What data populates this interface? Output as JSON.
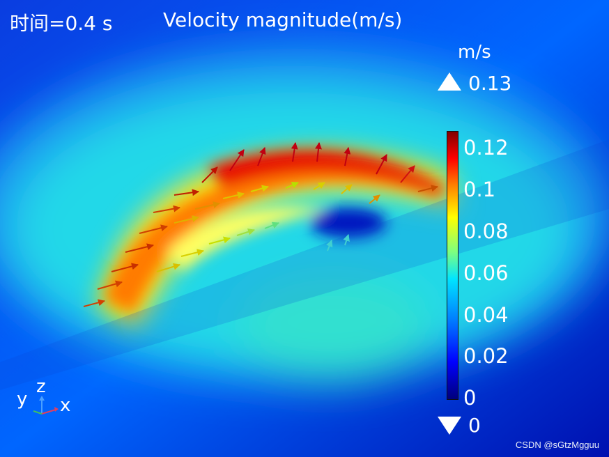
{
  "header": {
    "time": "时间=0.4 s",
    "title": "Velocity magnitude(m/s)"
  },
  "legend": {
    "unit": "m/s",
    "max": "0.13",
    "min": "0",
    "ticks": [
      "0.12",
      "0.1",
      "0.08",
      "0.06",
      "0.04",
      "0.02",
      "0"
    ]
  },
  "axes": {
    "x": "x",
    "y": "y",
    "z": "z"
  },
  "watermark": "CSDN @sGtzMgguu",
  "colors": {
    "background": "#0a2bd0",
    "high": "#c00000",
    "low": "#000080"
  }
}
